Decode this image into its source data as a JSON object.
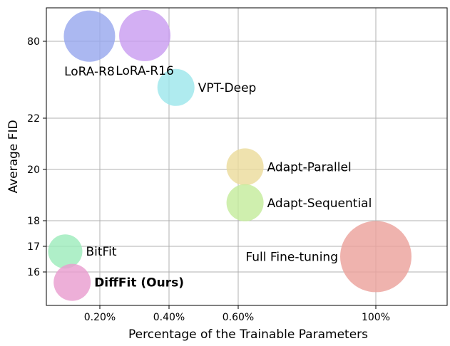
{
  "chart_data": {
    "type": "scatter",
    "xlabel": "Percentage of the Trainable Parameters",
    "ylabel": "Average FID",
    "grid": true,
    "x_ticks": [
      "0.20%",
      "0.40%",
      "0.60%",
      "100%"
    ],
    "y_ticks": [
      "16",
      "17",
      "18",
      "20",
      "22",
      "80"
    ],
    "points": [
      {
        "label": "LoRA-R8",
        "x": "0.17%",
        "y": 80.8,
        "color": "#99a8ee",
        "label_pos": "below",
        "bold": false
      },
      {
        "label": "LoRA-R16",
        "x": "0.33%",
        "y": 80.9,
        "color": "#c99ef0",
        "label_pos": "below",
        "bold": false
      },
      {
        "label": "VPT-Deep",
        "x": "0.42%",
        "y": 23.6,
        "color": "#9ee6ec",
        "label_pos": "right",
        "bold": false
      },
      {
        "label": "Adapt-Parallel",
        "x": "0.62%",
        "y": 20.1,
        "color": "#ecdc9c",
        "label_pos": "right",
        "bold": false
      },
      {
        "label": "Adapt-Sequential",
        "x": "0.62%",
        "y": 18.7,
        "color": "#c4ec9c",
        "label_pos": "right",
        "bold": false
      },
      {
        "label": "Full Fine-tuning",
        "x": "100%",
        "y": 16.6,
        "color": "#eca29c",
        "label_pos": "left",
        "bold": false
      },
      {
        "label": "BitFit",
        "x": "0.10%",
        "y": 16.8,
        "color": "#9eecbc",
        "label_pos": "right",
        "bold": false
      },
      {
        "label": "DiffFit (Ours)",
        "x": "0.12%",
        "y": 15.6,
        "color": "#e99ed0",
        "label_pos": "right",
        "bold": true
      }
    ]
  }
}
